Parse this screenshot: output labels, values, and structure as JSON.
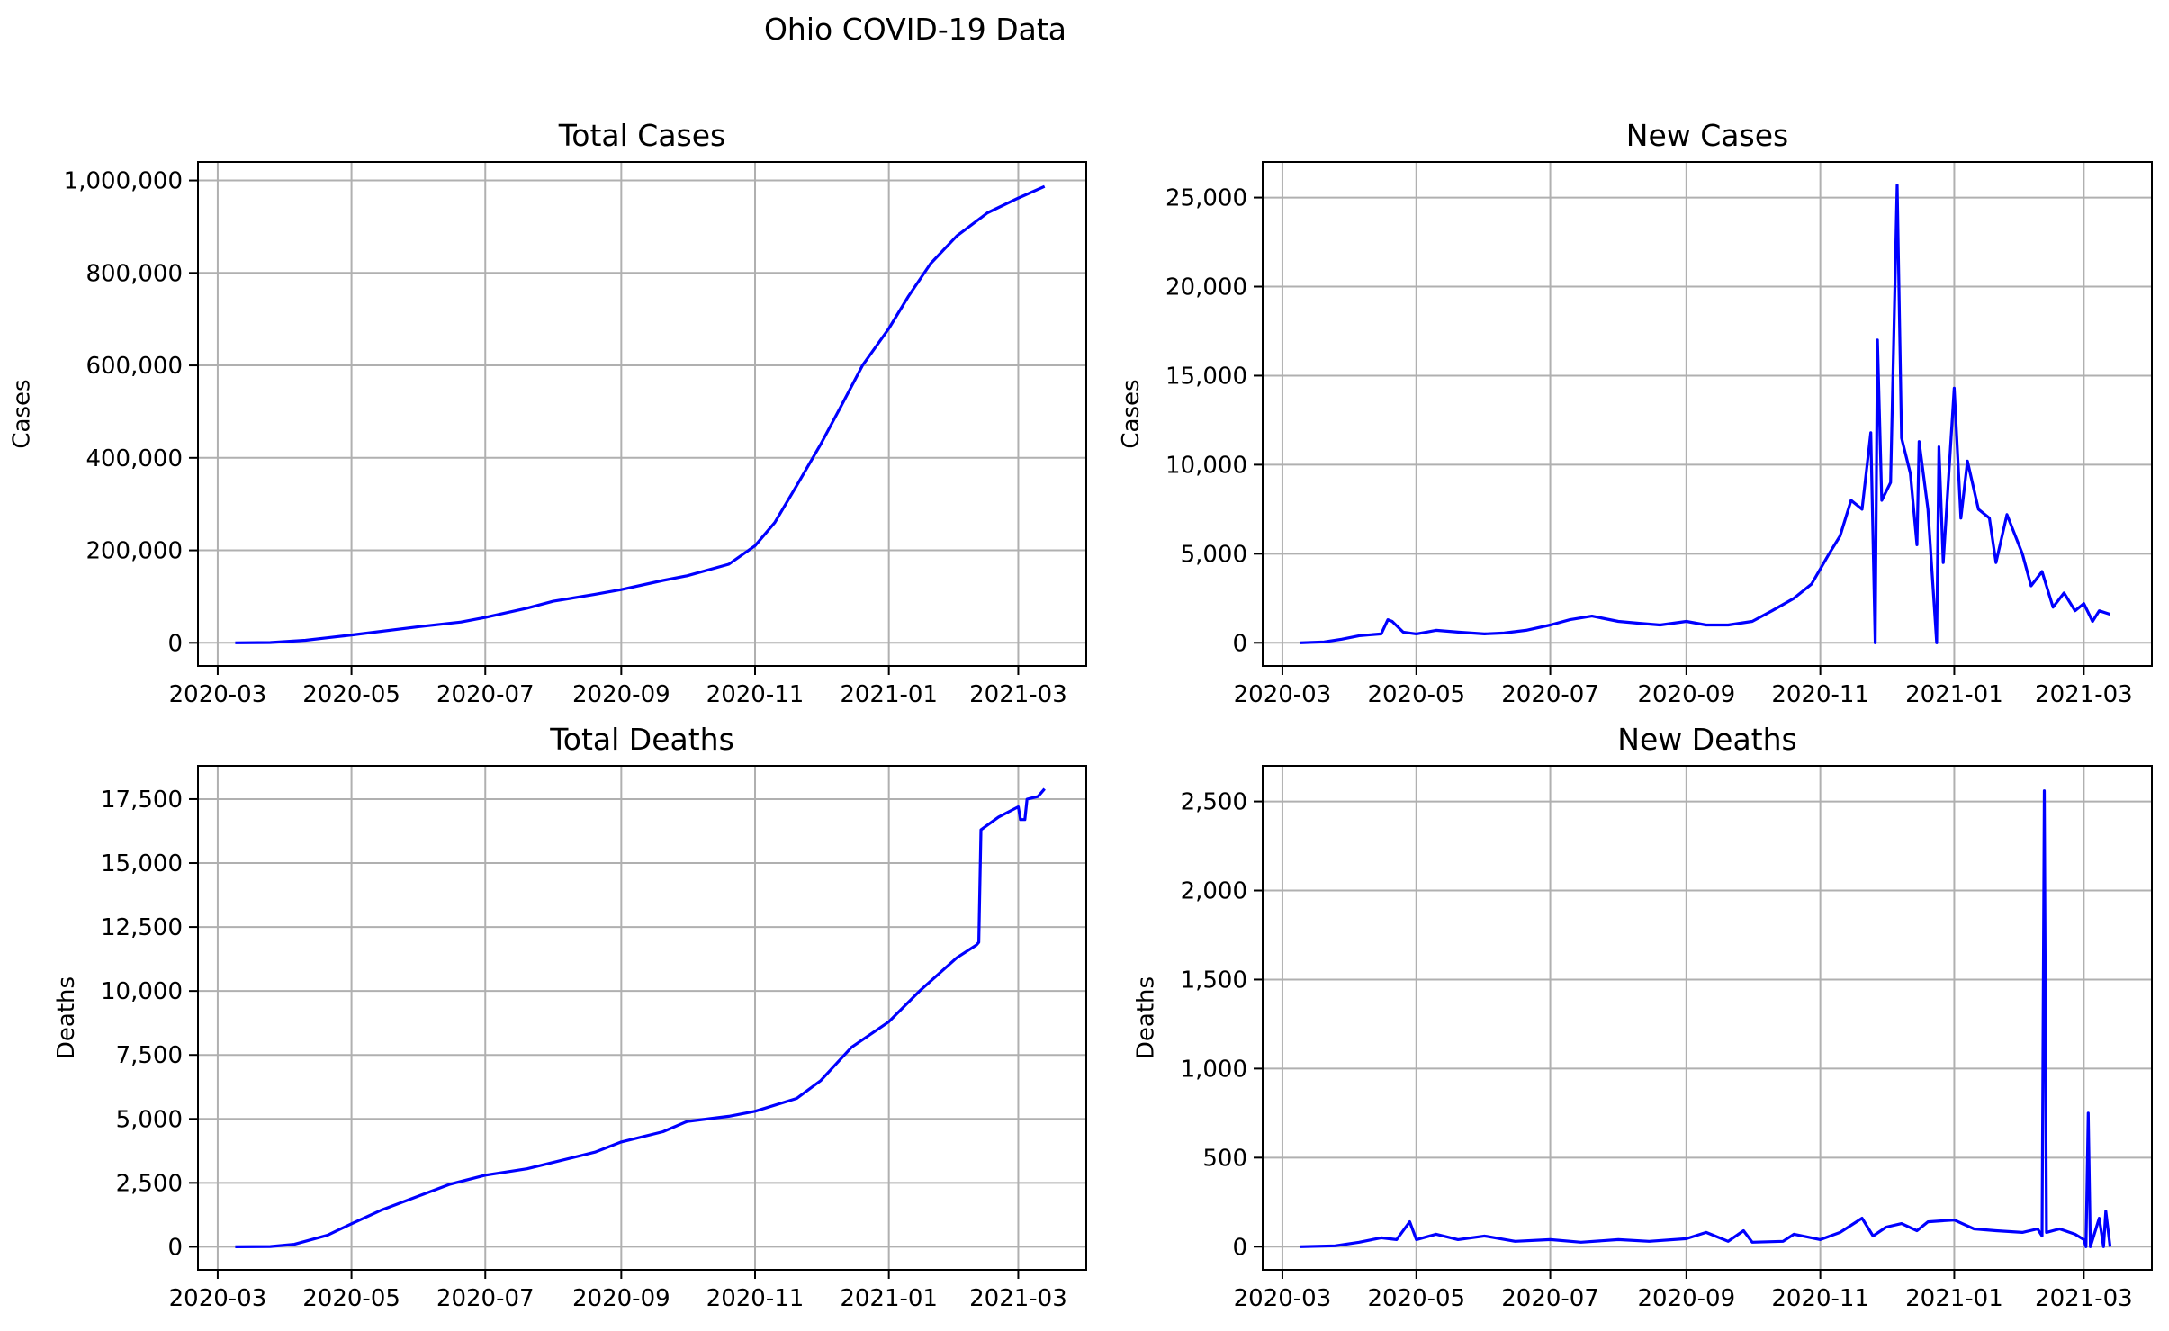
{
  "figure": {
    "title": "Ohio COVID-19 Data"
  },
  "colors": {
    "line": "#0000ff",
    "grid": "#b0b0b0",
    "axis": "#000000"
  },
  "chart_data": [
    {
      "type": "line",
      "title": "Total Cases",
      "xlabel": "",
      "ylabel": "Cases",
      "grid": true,
      "xlim": [
        "2020-02-21",
        "2021-04-01"
      ],
      "ylim": [
        -50000,
        1040000
      ],
      "xticks": [
        "2020-03-01",
        "2020-05-01",
        "2020-07-01",
        "2020-09-01",
        "2020-11-01",
        "2021-01-01",
        "2021-03-01"
      ],
      "xtick_labels": [
        "2020-03",
        "2020-05",
        "2020-07",
        "2020-09",
        "2020-11",
        "2021-01",
        "2021-03"
      ],
      "yticks": [
        0,
        200000,
        400000,
        600000,
        800000,
        1000000
      ],
      "ytick_labels": [
        "0",
        "200,000",
        "400,000",
        "600,000",
        "800,000",
        "1,000,000"
      ],
      "series": [
        {
          "points": [
            [
              "2020-03-09",
              0
            ],
            [
              "2020-03-25",
              700
            ],
            [
              "2020-04-10",
              5500
            ],
            [
              "2020-04-20",
              11000
            ],
            [
              "2020-05-01",
              17000
            ],
            [
              "2020-06-01",
              35000
            ],
            [
              "2020-06-20",
              45000
            ],
            [
              "2020-07-01",
              55000
            ],
            [
              "2020-07-20",
              75000
            ],
            [
              "2020-08-01",
              90000
            ],
            [
              "2020-08-20",
              105000
            ],
            [
              "2020-09-01",
              115000
            ],
            [
              "2020-09-20",
              135000
            ],
            [
              "2020-10-01",
              145000
            ],
            [
              "2020-10-20",
              170000
            ],
            [
              "2020-11-01",
              210000
            ],
            [
              "2020-11-10",
              260000
            ],
            [
              "2020-11-20",
              340000
            ],
            [
              "2020-12-01",
              430000
            ],
            [
              "2020-12-10",
              510000
            ],
            [
              "2020-12-20",
              600000
            ],
            [
              "2021-01-01",
              680000
            ],
            [
              "2021-01-10",
              750000
            ],
            [
              "2021-01-20",
              820000
            ],
            [
              "2021-02-01",
              880000
            ],
            [
              "2021-02-15",
              930000
            ],
            [
              "2021-03-01",
              962000
            ],
            [
              "2021-03-13",
              987000
            ]
          ]
        }
      ]
    },
    {
      "type": "line",
      "title": "New Cases",
      "xlabel": "",
      "ylabel": "Cases",
      "grid": true,
      "xlim": [
        "2020-02-21",
        "2021-04-01"
      ],
      "ylim": [
        -1300,
        27000
      ],
      "xticks": [
        "2020-03-01",
        "2020-05-01",
        "2020-07-01",
        "2020-09-01",
        "2020-11-01",
        "2021-01-01",
        "2021-03-01"
      ],
      "xtick_labels": [
        "2020-03",
        "2020-05",
        "2020-07",
        "2020-09",
        "2020-11",
        "2021-01",
        "2021-03"
      ],
      "yticks": [
        0,
        5000,
        10000,
        15000,
        20000,
        25000
      ],
      "ytick_labels": [
        "0",
        "5,000",
        "10,000",
        "15,000",
        "20,000",
        "25,000"
      ],
      "series": [
        {
          "points": [
            [
              "2020-03-09",
              0
            ],
            [
              "2020-03-20",
              50
            ],
            [
              "2020-03-28",
              200
            ],
            [
              "2020-04-05",
              400
            ],
            [
              "2020-04-15",
              500
            ],
            [
              "2020-04-18",
              1300
            ],
            [
              "2020-04-20",
              1200
            ],
            [
              "2020-04-25",
              600
            ],
            [
              "2020-05-01",
              500
            ],
            [
              "2020-05-10",
              700
            ],
            [
              "2020-05-20",
              600
            ],
            [
              "2020-06-01",
              500
            ],
            [
              "2020-06-10",
              550
            ],
            [
              "2020-06-20",
              700
            ],
            [
              "2020-07-01",
              1000
            ],
            [
              "2020-07-10",
              1300
            ],
            [
              "2020-07-20",
              1500
            ],
            [
              "2020-08-01",
              1200
            ],
            [
              "2020-08-10",
              1100
            ],
            [
              "2020-08-20",
              1000
            ],
            [
              "2020-09-01",
              1200
            ],
            [
              "2020-09-10",
              1000
            ],
            [
              "2020-09-20",
              1000
            ],
            [
              "2020-10-01",
              1200
            ],
            [
              "2020-10-10",
              1800
            ],
            [
              "2020-10-20",
              2500
            ],
            [
              "2020-10-28",
              3300
            ],
            [
              "2020-11-05",
              5000
            ],
            [
              "2020-11-10",
              6000
            ],
            [
              "2020-11-15",
              8000
            ],
            [
              "2020-11-20",
              7500
            ],
            [
              "2020-11-24",
              11800
            ],
            [
              "2020-11-26",
              0
            ],
            [
              "2020-11-27",
              17000
            ],
            [
              "2020-11-29",
              8000
            ],
            [
              "2020-12-03",
              9000
            ],
            [
              "2020-12-06",
              25700
            ],
            [
              "2020-12-08",
              11500
            ],
            [
              "2020-12-12",
              9500
            ],
            [
              "2020-12-15",
              5500
            ],
            [
              "2020-12-16",
              11300
            ],
            [
              "2020-12-20",
              7500
            ],
            [
              "2020-12-24",
              0
            ],
            [
              "2020-12-25",
              11000
            ],
            [
              "2020-12-27",
              4500
            ],
            [
              "2021-01-01",
              14300
            ],
            [
              "2021-01-04",
              7000
            ],
            [
              "2021-01-07",
              10200
            ],
            [
              "2021-01-12",
              7500
            ],
            [
              "2021-01-17",
              7000
            ],
            [
              "2021-01-20",
              4500
            ],
            [
              "2021-01-25",
              7200
            ],
            [
              "2021-02-01",
              5000
            ],
            [
              "2021-02-05",
              3200
            ],
            [
              "2021-02-10",
              4000
            ],
            [
              "2021-02-15",
              2000
            ],
            [
              "2021-02-20",
              2800
            ],
            [
              "2021-02-25",
              1800
            ],
            [
              "2021-03-01",
              2200
            ],
            [
              "2021-03-05",
              1200
            ],
            [
              "2021-03-08",
              1800
            ],
            [
              "2021-03-13",
              1600
            ]
          ]
        }
      ]
    },
    {
      "type": "line",
      "title": "Total Deaths",
      "xlabel": "",
      "ylabel": "Deaths",
      "grid": true,
      "xlim": [
        "2020-02-21",
        "2021-04-01"
      ],
      "ylim": [
        -900,
        18800
      ],
      "xticks": [
        "2020-03-01",
        "2020-05-01",
        "2020-07-01",
        "2020-09-01",
        "2020-11-01",
        "2021-01-01",
        "2021-03-01"
      ],
      "xtick_labels": [
        "2020-03",
        "2020-05",
        "2020-07",
        "2020-09",
        "2020-11",
        "2021-01",
        "2021-03"
      ],
      "yticks": [
        0,
        2500,
        5000,
        7500,
        10000,
        12500,
        15000,
        17500
      ],
      "ytick_labels": [
        "0",
        "2,500",
        "5,000",
        "7,500",
        "10,000",
        "12,500",
        "15,000",
        "17,500"
      ],
      "series": [
        {
          "points": [
            [
              "2020-03-09",
              0
            ],
            [
              "2020-03-25",
              10
            ],
            [
              "2020-04-05",
              100
            ],
            [
              "2020-04-20",
              450
            ],
            [
              "2020-05-01",
              900
            ],
            [
              "2020-05-15",
              1450
            ],
            [
              "2020-06-01",
              2000
            ],
            [
              "2020-06-15",
              2450
            ],
            [
              "2020-07-01",
              2800
            ],
            [
              "2020-07-20",
              3050
            ],
            [
              "2020-08-01",
              3300
            ],
            [
              "2020-08-20",
              3700
            ],
            [
              "2020-09-01",
              4100
            ],
            [
              "2020-09-20",
              4500
            ],
            [
              "2020-10-01",
              4900
            ],
            [
              "2020-10-20",
              5100
            ],
            [
              "2020-11-01",
              5300
            ],
            [
              "2020-11-20",
              5800
            ],
            [
              "2020-12-01",
              6500
            ],
            [
              "2020-12-15",
              7800
            ],
            [
              "2021-01-01",
              8800
            ],
            [
              "2021-01-15",
              10000
            ],
            [
              "2021-02-01",
              11300
            ],
            [
              "2021-02-10",
              11800
            ],
            [
              "2021-02-11",
              11900
            ],
            [
              "2021-02-12",
              16300
            ],
            [
              "2021-02-20",
              16800
            ],
            [
              "2021-03-01",
              17200
            ],
            [
              "2021-03-02",
              16700
            ],
            [
              "2021-03-04",
              16700
            ],
            [
              "2021-03-05",
              17500
            ],
            [
              "2021-03-10",
              17600
            ],
            [
              "2021-03-13",
              17900
            ]
          ]
        }
      ]
    },
    {
      "type": "line",
      "title": "New Deaths",
      "xlabel": "",
      "ylabel": "Deaths",
      "grid": true,
      "xlim": [
        "2020-02-21",
        "2021-04-01"
      ],
      "ylim": [
        -130,
        2700
      ],
      "xticks": [
        "2020-03-01",
        "2020-05-01",
        "2020-07-01",
        "2020-09-01",
        "2020-11-01",
        "2021-01-01",
        "2021-03-01"
      ],
      "xtick_labels": [
        "2020-03",
        "2020-05",
        "2020-07",
        "2020-09",
        "2020-11",
        "2021-01",
        "2021-03"
      ],
      "yticks": [
        0,
        500,
        1000,
        1500,
        2000,
        2500
      ],
      "ytick_labels": [
        "0",
        "500",
        "1,000",
        "1,500",
        "2,000",
        "2,500"
      ],
      "series": [
        {
          "points": [
            [
              "2020-03-09",
              0
            ],
            [
              "2020-03-25",
              5
            ],
            [
              "2020-04-05",
              25
            ],
            [
              "2020-04-15",
              50
            ],
            [
              "2020-04-22",
              40
            ],
            [
              "2020-04-28",
              140
            ],
            [
              "2020-05-01",
              40
            ],
            [
              "2020-05-10",
              70
            ],
            [
              "2020-05-20",
              40
            ],
            [
              "2020-06-01",
              60
            ],
            [
              "2020-06-15",
              30
            ],
            [
              "2020-07-01",
              40
            ],
            [
              "2020-07-15",
              25
            ],
            [
              "2020-08-01",
              40
            ],
            [
              "2020-08-15",
              30
            ],
            [
              "2020-09-01",
              45
            ],
            [
              "2020-09-10",
              80
            ],
            [
              "2020-09-20",
              30
            ],
            [
              "2020-09-27",
              90
            ],
            [
              "2020-10-01",
              25
            ],
            [
              "2020-10-15",
              30
            ],
            [
              "2020-10-20",
              70
            ],
            [
              "2020-11-01",
              40
            ],
            [
              "2020-11-10",
              80
            ],
            [
              "2020-11-20",
              160
            ],
            [
              "2020-11-25",
              60
            ],
            [
              "2020-12-01",
              110
            ],
            [
              "2020-12-08",
              130
            ],
            [
              "2020-12-15",
              90
            ],
            [
              "2020-12-20",
              140
            ],
            [
              "2021-01-01",
              150
            ],
            [
              "2021-01-10",
              100
            ],
            [
              "2021-01-20",
              90
            ],
            [
              "2021-02-01",
              80
            ],
            [
              "2021-02-08",
              100
            ],
            [
              "2021-02-10",
              60
            ],
            [
              "2021-02-11",
              2560
            ],
            [
              "2021-02-12",
              80
            ],
            [
              "2021-02-18",
              100
            ],
            [
              "2021-02-25",
              70
            ],
            [
              "2021-03-01",
              40
            ],
            [
              "2021-03-02",
              0
            ],
            [
              "2021-03-03",
              750
            ],
            [
              "2021-03-04",
              0
            ],
            [
              "2021-03-08",
              160
            ],
            [
              "2021-03-10",
              0
            ],
            [
              "2021-03-11",
              200
            ],
            [
              "2021-03-13",
              0
            ]
          ]
        }
      ]
    }
  ]
}
